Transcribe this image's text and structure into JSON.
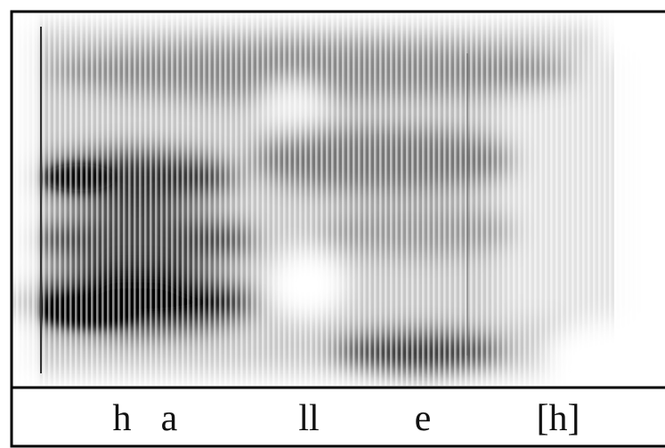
{
  "segments": [
    {
      "label": "h"
    },
    {
      "label": "a"
    },
    {
      "label": "ll"
    },
    {
      "label": "e"
    },
    {
      "label": "[h]"
    }
  ]
}
